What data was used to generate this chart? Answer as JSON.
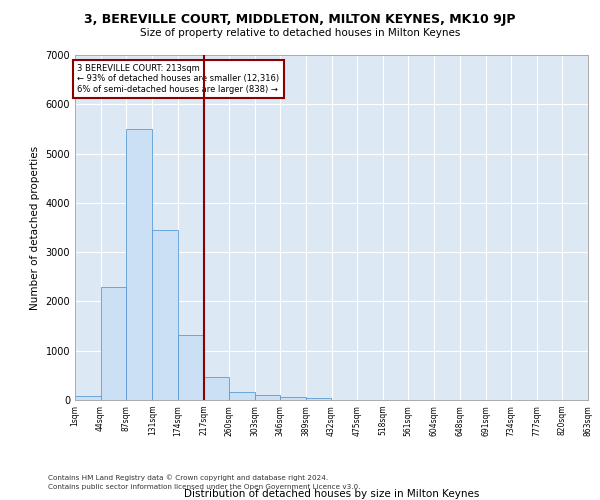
{
  "title_line1": "3, BEREVILLE COURT, MIDDLETON, MILTON KEYNES, MK10 9JP",
  "title_line2": "Size of property relative to detached houses in Milton Keynes",
  "xlabel": "Distribution of detached houses by size in Milton Keynes",
  "ylabel": "Number of detached properties",
  "footer_line1": "Contains HM Land Registry data © Crown copyright and database right 2024.",
  "footer_line2": "Contains public sector information licensed under the Open Government Licence v3.0.",
  "annotation_line1": "3 BEREVILLE COURT: 213sqm",
  "annotation_line2": "← 93% of detached houses are smaller (12,316)",
  "annotation_line3": "6% of semi-detached houses are larger (838) →",
  "property_size": 213,
  "bar_color": "#cce0f5",
  "bar_edge_color": "#5b9bd5",
  "vline_color": "#8b0000",
  "annotation_box_color": "#8b0000",
  "background_color": "#dde8f5",
  "bin_edges": [
    1,
    44,
    87,
    131,
    174,
    217,
    260,
    303,
    346,
    389,
    432,
    475,
    518,
    561,
    604,
    648,
    691,
    734,
    777,
    820,
    863
  ],
  "bin_labels": [
    "1sqm",
    "44sqm",
    "87sqm",
    "131sqm",
    "174sqm",
    "217sqm",
    "260sqm",
    "303sqm",
    "346sqm",
    "389sqm",
    "432sqm",
    "475sqm",
    "518sqm",
    "561sqm",
    "604sqm",
    "648sqm",
    "691sqm",
    "734sqm",
    "777sqm",
    "820sqm",
    "863sqm"
  ],
  "bar_heights": [
    75,
    2300,
    5500,
    3450,
    1320,
    470,
    155,
    100,
    60,
    40,
    0,
    0,
    0,
    0,
    0,
    0,
    0,
    0,
    0,
    0
  ],
  "ylim": [
    0,
    7000
  ],
  "yticks": [
    0,
    1000,
    2000,
    3000,
    4000,
    5000,
    6000,
    7000
  ],
  "grid_color": "#ffffff",
  "vline_x": 217
}
